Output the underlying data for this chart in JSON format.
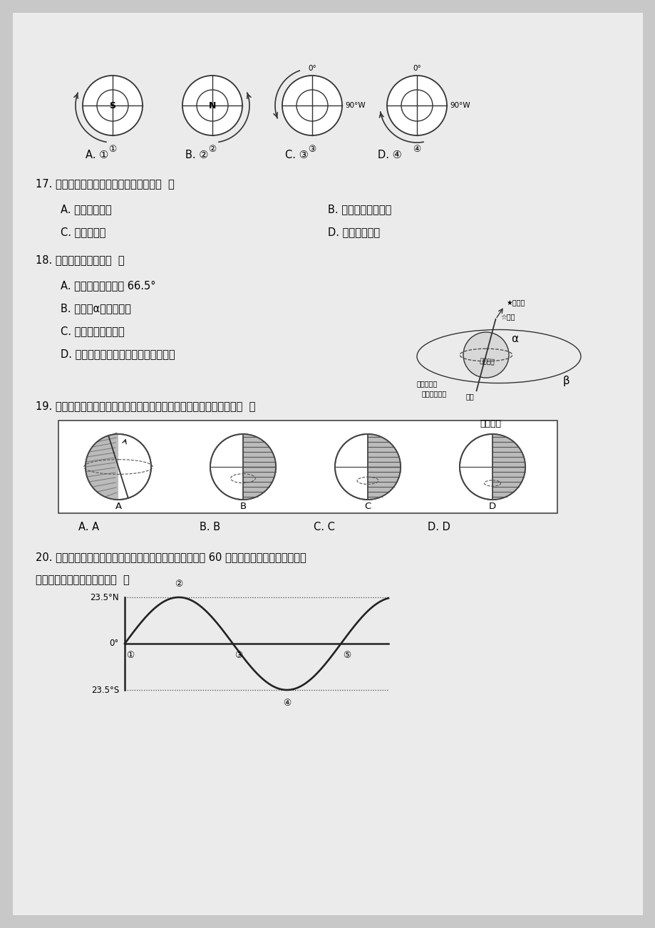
{
  "bg_color": "#c8c8c8",
  "page_bg": "#ebebeb",
  "q17_text": "17. 任何一天，地球表面经度相同的地方（  ）",
  "q17_A": "A. 日出时间相同",
  "q17_B": "B. 正午太阳高度相同",
  "q17_C": "C. 地方时相同",
  "q17_D": "D. 昼夜长短相同",
  "q18_text": "18. 下列说法正确的是（  ）",
  "q18_A": "A. 目前的黄赤交角是 66.5°",
  "q18_B": "B. 图中角α是黄赤交角",
  "q18_C": "C. 黄赤交角始终不变",
  "q18_D": "D. 黄赤交角度数即是南北回归线的度数",
  "q19_text": "19. 下列四幅图中（阴影表示夜半球），能正确表示北半球夏至日的是（  ）",
  "q20_text1": "20. 下图是太阳直射点在地球表面移动示意图。在我们祖国 60 周年庆贺日，太阳直射点在哪",
  "q20_text2": "个区域并向哪个方向移动？（  ）"
}
